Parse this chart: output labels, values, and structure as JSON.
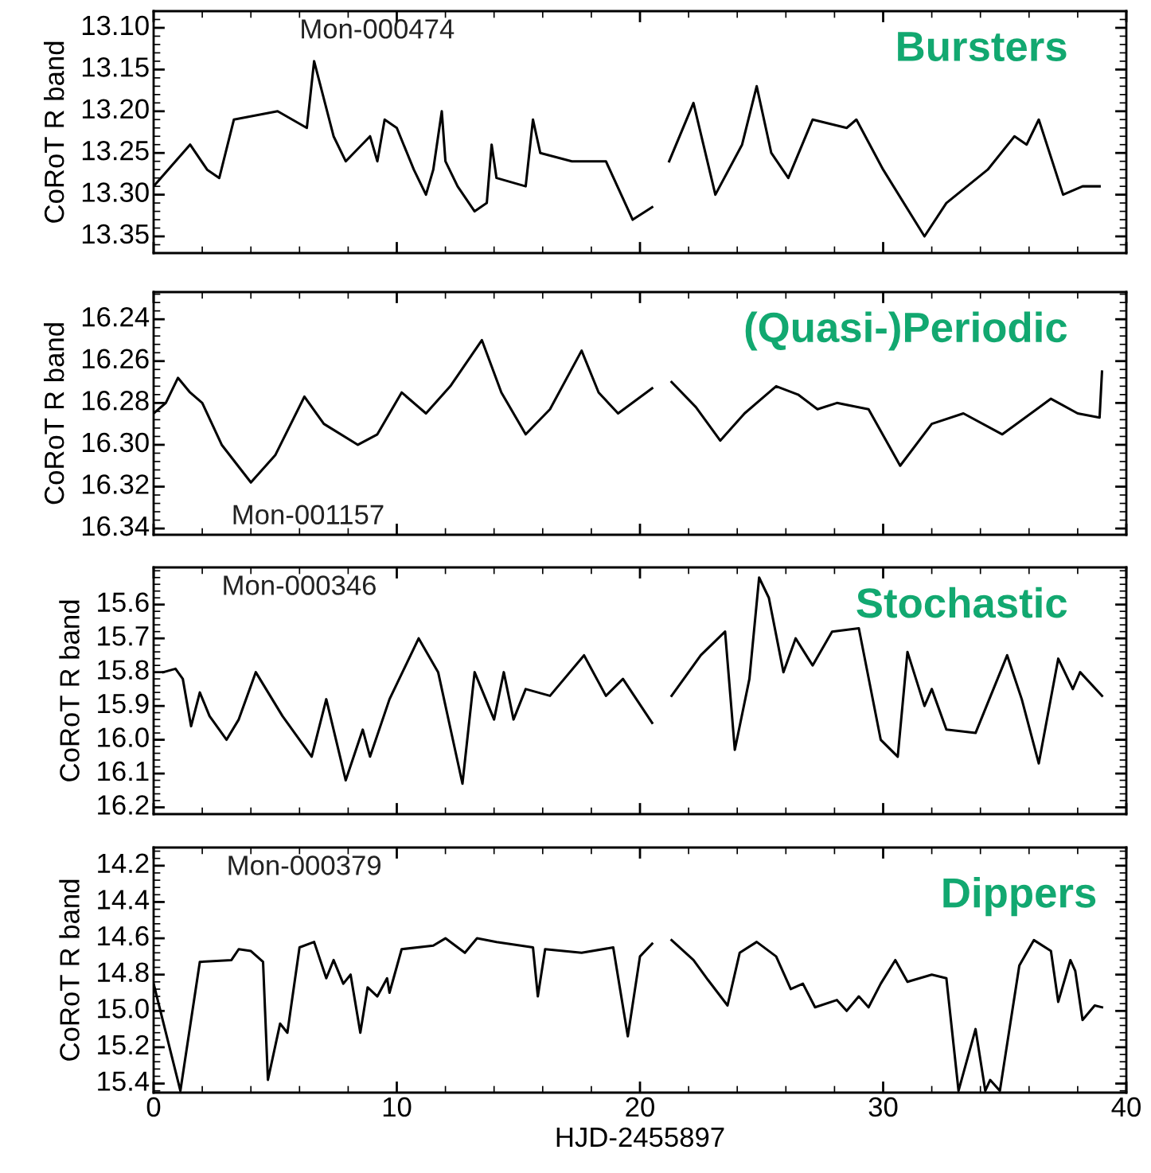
{
  "chart_data": [
    {
      "type": "line",
      "title": "Bursters",
      "annotations": [
        "Mon-000474"
      ],
      "ylabel": "CoRoT R band",
      "xlim": [
        0,
        40
      ],
      "xticks": [
        0,
        10,
        20,
        30,
        40
      ],
      "ylim": [
        13.37,
        13.08
      ],
      "yticks": [
        {
          "value": 13.1,
          "label": "13.10"
        },
        {
          "value": 13.15,
          "label": "13.15"
        },
        {
          "value": 13.2,
          "label": "13.20"
        },
        {
          "value": 13.25,
          "label": "13.25"
        },
        {
          "value": 13.3,
          "label": "13.30"
        },
        {
          "value": 13.35,
          "label": "13.35"
        }
      ],
      "tick_labels": "y",
      "grid": false,
      "legend": false,
      "marker": "none",
      "line_style": "solid",
      "series": [
        {
          "color": "#000000",
          "x": [
            0.0,
            1.5,
            2.2,
            2.7,
            3.3,
            5.1,
            6.3,
            6.6,
            7.4,
            7.9,
            8.9,
            9.2,
            9.5,
            10.0,
            10.7,
            11.2,
            11.5,
            11.85,
            12.0,
            12.5,
            13.2,
            13.7,
            13.9,
            14.1,
            15.3,
            15.6,
            15.9,
            17.2,
            18.6,
            19.7,
            20.5
          ],
          "values": [
            13.29,
            13.24,
            13.27,
            13.28,
            13.21,
            13.2,
            13.22,
            13.14,
            13.23,
            13.26,
            13.23,
            13.26,
            13.21,
            13.22,
            13.27,
            13.3,
            13.27,
            13.2,
            13.26,
            13.29,
            13.32,
            13.31,
            13.24,
            13.28,
            13.29,
            13.21,
            13.25,
            13.26,
            13.26,
            13.33,
            13.315
          ]
        },
        {
          "color": "#000000",
          "x": [
            21.2,
            22.2,
            23.1,
            24.2,
            24.8,
            25.4,
            26.1,
            27.1,
            28.5,
            28.9,
            30.0,
            31.7,
            32.6,
            34.3,
            35.4,
            35.9,
            36.4,
            37.4,
            38.2,
            38.9
          ],
          "values": [
            13.26,
            13.19,
            13.3,
            13.24,
            13.17,
            13.25,
            13.28,
            13.21,
            13.22,
            13.21,
            13.27,
            13.35,
            13.31,
            13.27,
            13.23,
            13.24,
            13.21,
            13.3,
            13.29,
            13.29
          ]
        }
      ]
    },
    {
      "type": "line",
      "title": "(Quasi-)Periodic",
      "annotations": [
        "Mon-001157"
      ],
      "ylabel": "CoRoT R band",
      "xlim": [
        0,
        40
      ],
      "xticks": [
        0,
        10,
        20,
        30,
        40
      ],
      "ylim": [
        16.343,
        16.227
      ],
      "yticks": [
        16.24,
        16.26,
        16.28,
        {
          "value": 16.3,
          "label": "16.30"
        },
        16.32,
        16.34
      ],
      "tick_labels": "y",
      "grid": false,
      "legend": false,
      "marker": "none",
      "line_style": "solid",
      "series": [
        {
          "color": "#000000",
          "x": [
            0.0,
            0.5,
            1.0,
            1.5,
            2.0,
            2.8,
            4.0,
            5.0,
            6.2,
            7.0,
            8.4,
            9.2,
            10.2,
            11.2,
            12.2,
            13.5,
            14.3,
            15.3,
            16.3,
            17.6,
            18.3,
            19.1,
            20.5
          ],
          "values": [
            16.285,
            16.28,
            16.268,
            16.275,
            16.28,
            16.3,
            16.318,
            16.305,
            16.277,
            16.29,
            16.3,
            16.295,
            16.275,
            16.285,
            16.272,
            16.25,
            16.275,
            16.295,
            16.283,
            16.255,
            16.275,
            16.285,
            16.273
          ]
        },
        {
          "color": "#000000",
          "x": [
            21.3,
            22.3,
            23.3,
            24.3,
            25.6,
            26.5,
            27.3,
            28.1,
            29.4,
            30.7,
            32.0,
            33.3,
            34.9,
            36.9,
            38.0,
            38.9,
            39.0
          ],
          "values": [
            16.27,
            16.282,
            16.298,
            16.285,
            16.272,
            16.276,
            16.283,
            16.28,
            16.283,
            16.31,
            16.29,
            16.285,
            16.295,
            16.278,
            16.285,
            16.287,
            16.265
          ]
        }
      ]
    },
    {
      "type": "line",
      "title": "Stochastic",
      "annotations": [
        "Mon-000346"
      ],
      "ylabel": "CoRoT R band",
      "xlim": [
        0,
        40
      ],
      "xticks": [
        0,
        10,
        20,
        30,
        40
      ],
      "ylim": [
        16.22,
        15.49
      ],
      "yticks": [
        15.6,
        15.7,
        15.8,
        15.9,
        {
          "value": 16,
          "label": "16.0"
        },
        16.1,
        16.2
      ],
      "tick_labels": "y",
      "grid": false,
      "legend": false,
      "marker": "none",
      "line_style": "solid",
      "series": [
        {
          "color": "#000000",
          "x": [
            0.4,
            0.9,
            1.2,
            1.54,
            1.9,
            2.3,
            3.0,
            3.5,
            4.2,
            5.3,
            6.5,
            7.1,
            7.9,
            8.6,
            8.9,
            9.7,
            10.9,
            11.7,
            12.7,
            13.2,
            14.0,
            14.4,
            14.8,
            15.3,
            16.3,
            17.7,
            18.6,
            19.3,
            20.5
          ],
          "values": [
            15.8,
            15.79,
            15.82,
            15.96,
            15.86,
            15.93,
            16.0,
            15.94,
            15.8,
            15.93,
            16.05,
            15.88,
            16.12,
            15.97,
            16.05,
            15.88,
            15.7,
            15.8,
            16.13,
            15.8,
            15.94,
            15.8,
            15.94,
            15.85,
            15.87,
            15.75,
            15.87,
            15.82,
            15.95
          ]
        },
        {
          "color": "#000000",
          "x": [
            21.3,
            22.5,
            23.5,
            23.9,
            24.5,
            24.9,
            25.3,
            25.9,
            26.4,
            27.1,
            27.9,
            29.0,
            29.9,
            30.6,
            31.0,
            31.7,
            32.0,
            32.6,
            33.8,
            35.1,
            35.7,
            36.4,
            37.2,
            37.8,
            38.1,
            39.0
          ],
          "values": [
            15.87,
            15.75,
            15.68,
            16.03,
            15.82,
            15.52,
            15.58,
            15.8,
            15.7,
            15.78,
            15.68,
            15.67,
            16.0,
            16.05,
            15.74,
            15.9,
            15.85,
            15.97,
            15.98,
            15.75,
            15.88,
            16.07,
            15.76,
            15.85,
            15.8,
            15.87
          ]
        }
      ]
    },
    {
      "type": "line",
      "title": "Dippers",
      "annotations": [
        "Mon-000379"
      ],
      "xlabel": "HJD-2455897",
      "ylabel": "CoRoT R band",
      "xlim": [
        0,
        40
      ],
      "xticks": [
        0,
        10,
        20,
        30,
        40
      ],
      "ylim": [
        15.45,
        14.1
      ],
      "yticks": [
        14.2,
        14.4,
        14.6,
        14.8,
        {
          "value": 15,
          "label": "15.0"
        },
        15.2,
        15.4
      ],
      "grid": false,
      "legend": false,
      "marker": "none",
      "line_style": "solid",
      "series": [
        {
          "color": "#000000",
          "x": [
            0.0,
            1.1,
            1.9,
            3.2,
            3.5,
            4.0,
            4.5,
            4.7,
            5.2,
            5.5,
            6.0,
            6.6,
            7.1,
            7.4,
            7.8,
            8.1,
            8.5,
            8.8,
            9.2,
            9.6,
            9.7,
            10.2,
            11.5,
            12.0,
            12.8,
            13.3,
            14.1,
            15.6,
            15.8,
            16.1,
            17.6,
            18.9,
            19.5,
            20.0,
            20.5
          ],
          "values": [
            14.85,
            15.44,
            14.73,
            14.72,
            14.66,
            14.67,
            14.73,
            15.38,
            15.07,
            15.12,
            14.65,
            14.62,
            14.82,
            14.72,
            14.85,
            14.8,
            15.12,
            14.87,
            14.92,
            14.82,
            14.9,
            14.66,
            14.64,
            14.6,
            14.68,
            14.6,
            14.62,
            14.65,
            14.92,
            14.66,
            14.68,
            14.65,
            15.14,
            14.7,
            14.63
          ]
        },
        {
          "color": "#000000",
          "x": [
            21.3,
            22.2,
            22.8,
            23.6,
            24.1,
            24.8,
            25.6,
            26.2,
            26.7,
            27.2,
            28.1,
            28.5,
            29.0,
            29.4,
            29.9,
            30.5,
            31.0,
            32.0,
            32.6,
            33.1,
            33.8,
            34.2,
            34.4,
            34.8,
            35.6,
            36.2,
            36.9,
            37.2,
            37.7,
            37.9,
            38.2,
            38.7,
            39.0
          ],
          "values": [
            14.61,
            14.72,
            14.83,
            14.97,
            14.68,
            14.62,
            14.7,
            14.88,
            14.85,
            14.98,
            14.94,
            15.0,
            14.92,
            14.98,
            14.85,
            14.72,
            14.84,
            14.8,
            14.82,
            15.44,
            15.1,
            15.44,
            15.38,
            15.44,
            14.75,
            14.61,
            14.67,
            14.95,
            14.72,
            14.78,
            15.05,
            14.97,
            14.98
          ]
        }
      ]
    }
  ]
}
